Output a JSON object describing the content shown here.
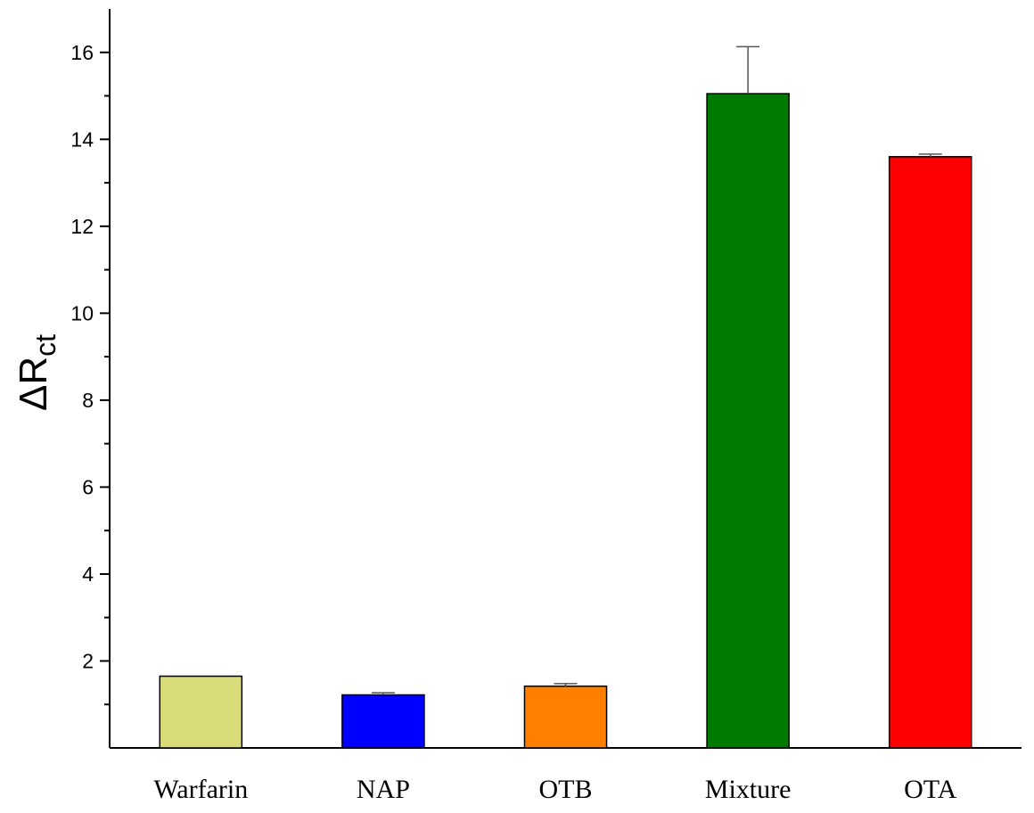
{
  "chart_data": {
    "type": "bar",
    "title": "",
    "xlabel": "",
    "ylabel": {
      "main": "ΔR",
      "subscript": "ct"
    },
    "categories": [
      "Warfarin",
      "NAP",
      "OTB",
      "Mixture",
      "OTA"
    ],
    "values": [
      1.65,
      1.22,
      1.42,
      15.05,
      13.6
    ],
    "errors": [
      0.0,
      0.05,
      0.06,
      1.08,
      0.06
    ],
    "colors": [
      "#d9db7a",
      "#0000ff",
      "#ff8000",
      "#007a00",
      "#ff0000"
    ],
    "ylim": [
      0,
      17
    ],
    "yticks": [
      2,
      4,
      6,
      8,
      10,
      12,
      14,
      16
    ],
    "ytick_labels": [
      "2",
      "4",
      "6",
      "8",
      "10",
      "12",
      "14",
      "16"
    ],
    "grid": false,
    "legend": "none"
  }
}
